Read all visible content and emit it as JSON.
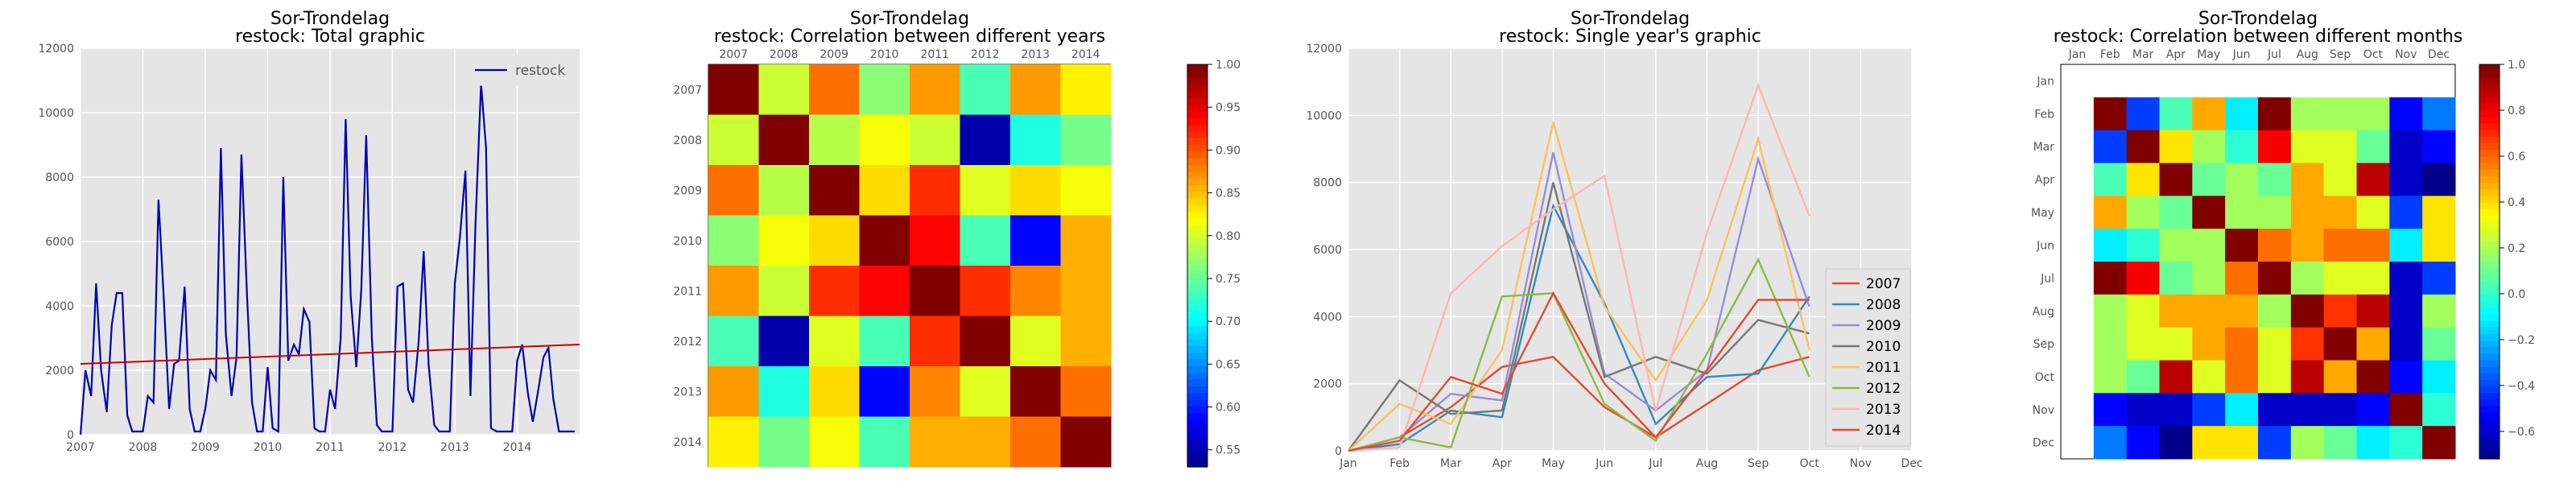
{
  "chart_data": [
    {
      "type": "line",
      "title": "Sor-Trondelag\nrestock: Total graphic",
      "x_ticks": [
        "2007",
        "2008",
        "2009",
        "2010",
        "2011",
        "2012",
        "2013",
        "2014"
      ],
      "x_range": [
        2007.0,
        2015.0
      ],
      "ylim": [
        0,
        12000
      ],
      "y_ticks": [
        0,
        2000,
        4000,
        6000,
        8000,
        10000,
        12000
      ],
      "grid": true,
      "legend": "top-right",
      "series": [
        {
          "name": "restock",
          "color": "#0000b3",
          "x": [
            2007.0,
            2007.08,
            2007.17,
            2007.25,
            2007.33,
            2007.42,
            2007.5,
            2007.58,
            2007.67,
            2007.75,
            2007.83,
            2007.92,
            2008.0,
            2008.08,
            2008.17,
            2008.25,
            2008.33,
            2008.42,
            2008.5,
            2008.58,
            2008.67,
            2008.75,
            2008.83,
            2008.92,
            2009.0,
            2009.08,
            2009.17,
            2009.25,
            2009.33,
            2009.42,
            2009.5,
            2009.58,
            2009.67,
            2009.75,
            2009.83,
            2009.92,
            2010.0,
            2010.08,
            2010.17,
            2010.25,
            2010.33,
            2010.42,
            2010.5,
            2010.58,
            2010.67,
            2010.75,
            2010.83,
            2010.92,
            2011.0,
            2011.08,
            2011.17,
            2011.25,
            2011.33,
            2011.42,
            2011.5,
            2011.58,
            2011.67,
            2011.75,
            2011.83,
            2011.92,
            2012.0,
            2012.08,
            2012.17,
            2012.25,
            2012.33,
            2012.42,
            2012.5,
            2012.58,
            2012.67,
            2012.75,
            2012.83,
            2012.92,
            2013.0,
            2013.08,
            2013.17,
            2013.25,
            2013.33,
            2013.42,
            2013.5,
            2013.58,
            2013.67,
            2013.75,
            2013.83,
            2013.92,
            2014.0,
            2014.08,
            2014.17,
            2014.25,
            2014.33,
            2014.42,
            2014.5,
            2014.58,
            2014.67,
            2014.75,
            2014.83,
            2014.92
          ],
          "y": [
            0,
            2000,
            1200,
            4700,
            2000,
            700,
            3400,
            4400,
            4400,
            600,
            100,
            100,
            100,
            1200,
            1000,
            7300,
            4400,
            800,
            2200,
            2300,
            4600,
            800,
            100,
            100,
            800,
            2000,
            1700,
            8900,
            3100,
            1200,
            2400,
            8700,
            4300,
            1000,
            100,
            100,
            2100,
            200,
            100,
            8000,
            2300,
            2800,
            2500,
            3900,
            3500,
            200,
            100,
            100,
            1400,
            800,
            3000,
            9800,
            4300,
            2100,
            4500,
            9300,
            3000,
            300,
            100,
            100,
            100,
            4600,
            4700,
            1400,
            1000,
            2900,
            5700,
            2200,
            300,
            100,
            100,
            100,
            4700,
            6100,
            8200,
            1200,
            6500,
            10900,
            8900,
            200,
            100,
            100,
            100,
            100,
            2300,
            2800,
            1300,
            400,
            1300,
            2400,
            2700,
            1100,
            100,
            100,
            100,
            100
          ]
        }
      ],
      "trend": {
        "start": 2200,
        "end": 2800,
        "color": "#cc0000"
      }
    },
    {
      "type": "heatmap",
      "title": "Sor-Trondelag\nrestock: Correlation between different years",
      "labels": [
        "2007",
        "2008",
        "2009",
        "2010",
        "2011",
        "2012",
        "2013",
        "2014"
      ],
      "matrix": [
        [
          1.0,
          0.8,
          0.89,
          0.77,
          0.87,
          0.74,
          0.87,
          0.83
        ],
        [
          0.8,
          1.0,
          0.79,
          0.82,
          0.8,
          0.55,
          0.72,
          0.76
        ],
        [
          0.89,
          0.79,
          1.0,
          0.84,
          0.92,
          0.81,
          0.84,
          0.82
        ],
        [
          0.77,
          0.82,
          0.84,
          1.0,
          0.94,
          0.74,
          0.59,
          0.86
        ],
        [
          0.87,
          0.8,
          0.92,
          0.94,
          1.0,
          0.92,
          0.88,
          0.86
        ],
        [
          0.74,
          0.55,
          0.81,
          0.74,
          0.92,
          1.0,
          0.81,
          0.86
        ],
        [
          0.87,
          0.72,
          0.84,
          0.59,
          0.88,
          0.81,
          1.0,
          0.89
        ],
        [
          0.83,
          0.76,
          0.82,
          0.74,
          0.86,
          0.86,
          0.89,
          1.0
        ]
      ],
      "vmin": 0.53,
      "vmax": 1.0,
      "colorbar_ticks": [
        0.55,
        0.6,
        0.65,
        0.7,
        0.75,
        0.8,
        0.85,
        0.9,
        0.95,
        1.0
      ],
      "colorbar_labels": [
        "0.55",
        "0.60",
        "0.65",
        "0.70",
        "0.75",
        "0.80",
        "0.85",
        "0.90",
        "0.95",
        "1.00"
      ]
    },
    {
      "type": "line",
      "title": "Sor-Trondelag\nrestock: Single year's graphic",
      "categories": [
        "Jan",
        "Feb",
        "Mar",
        "Apr",
        "May",
        "Jun",
        "Jul",
        "Aug",
        "Sep",
        "Oct",
        "Nov",
        "Dec"
      ],
      "ylim": [
        0,
        12000
      ],
      "y_ticks": [
        0,
        2000,
        4000,
        6000,
        8000,
        10000,
        12000
      ],
      "grid": true,
      "legend": "bottom-right",
      "series": [
        {
          "name": "2007",
          "color": "#e24a33",
          "values": [
            0,
            400,
            1300,
            2500,
            2800,
            1300,
            400,
            1400,
            2400,
            2800,
            null,
            null
          ]
        },
        {
          "name": "2008",
          "color": "#348abd",
          "values": [
            0,
            200,
            1200,
            1000,
            7300,
            4400,
            800,
            2200,
            2300,
            4600,
            null,
            null
          ]
        },
        {
          "name": "2009",
          "color": "#988ed5",
          "values": [
            0,
            400,
            1700,
            1500,
            8900,
            2300,
            1200,
            2400,
            8700,
            4300,
            null,
            null
          ]
        },
        {
          "name": "2010",
          "color": "#777777",
          "values": [
            0,
            2100,
            1100,
            1200,
            8000,
            2200,
            2800,
            2300,
            3900,
            3500,
            null,
            null
          ]
        },
        {
          "name": "2011",
          "color": "#fbc15e",
          "values": [
            0,
            1400,
            800,
            3000,
            9800,
            4300,
            2100,
            4500,
            9300,
            3000,
            null,
            null
          ]
        },
        {
          "name": "2012",
          "color": "#8eba42",
          "values": [
            0,
            400,
            100,
            4600,
            4700,
            1400,
            300,
            2900,
            5700,
            2200,
            null,
            null
          ]
        },
        {
          "name": "2013",
          "color": "#ffb5b8",
          "values": [
            0,
            100,
            4700,
            6100,
            7200,
            8200,
            1200,
            6500,
            10900,
            7000,
            null,
            null
          ]
        },
        {
          "name": "2014",
          "color": "#e24a33",
          "values": [
            0,
            300,
            2200,
            1700,
            4700,
            2000,
            400,
            2400,
            4500,
            4500,
            null,
            null
          ]
        }
      ]
    },
    {
      "type": "heatmap",
      "title": "Sor-Trondelag\nrestock: Correlation between different months",
      "labels": [
        "Jan",
        "Feb",
        "Mar",
        "Apr",
        "May",
        "Jun",
        "Jul",
        "Aug",
        "Sep",
        "Oct",
        "Nov",
        "Dec"
      ],
      "first_row_empty": true,
      "matrix": [
        [
          1.0,
          -0.4,
          0.05,
          0.5,
          -0.1,
          1.0,
          0.2,
          0.2,
          0.2,
          -0.5,
          -0.3
        ],
        [
          -0.4,
          1.0,
          0.4,
          0.2,
          0.0,
          0.8,
          0.3,
          0.3,
          0.1,
          -0.6,
          -0.5
        ],
        [
          0.05,
          0.4,
          1.0,
          0.1,
          0.2,
          0.1,
          0.5,
          0.3,
          0.9,
          -0.6,
          -0.7
        ],
        [
          0.5,
          0.2,
          0.1,
          1.0,
          0.2,
          0.2,
          0.5,
          0.5,
          0.3,
          -0.4,
          0.4
        ],
        [
          -0.1,
          0.0,
          0.2,
          0.2,
          1.0,
          0.6,
          0.5,
          0.6,
          0.6,
          -0.1,
          0.4
        ],
        [
          1.0,
          0.8,
          0.1,
          0.2,
          0.6,
          1.0,
          0.2,
          0.3,
          0.3,
          -0.6,
          -0.4
        ],
        [
          0.2,
          0.3,
          0.5,
          0.5,
          0.5,
          0.2,
          1.0,
          0.7,
          0.9,
          -0.6,
          0.2
        ],
        [
          0.2,
          0.3,
          0.3,
          0.5,
          0.6,
          0.3,
          0.7,
          1.0,
          0.5,
          -0.6,
          0.1
        ],
        [
          0.2,
          0.1,
          0.9,
          0.3,
          0.6,
          0.3,
          0.9,
          0.5,
          1.0,
          -0.5,
          -0.1
        ],
        [
          -0.5,
          -0.6,
          -0.6,
          -0.4,
          -0.1,
          -0.6,
          -0.6,
          -0.6,
          -0.5,
          1.0,
          0.0
        ],
        [
          -0.3,
          -0.5,
          -0.7,
          0.4,
          0.4,
          -0.4,
          0.2,
          0.1,
          -0.1,
          0.0,
          1.0
        ]
      ],
      "vmin": -0.72,
      "vmax": 1.0,
      "colorbar_ticks": [
        -0.6,
        -0.4,
        -0.2,
        0.0,
        0.2,
        0.4,
        0.6,
        0.8,
        1.0
      ],
      "colorbar_labels": [
        "−0.6",
        "−0.4",
        "−0.2",
        "0.0",
        "0.2",
        "0.4",
        "0.6",
        "0.8",
        "1.0"
      ]
    }
  ]
}
